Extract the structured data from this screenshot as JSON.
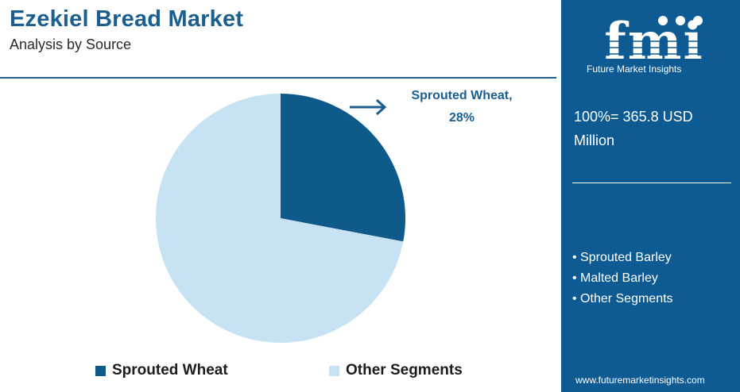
{
  "header": {
    "title": "Ezekiel Bread Market",
    "subtitle": "Analysis by Source"
  },
  "chart_data": {
    "type": "pie",
    "categories": [
      "Sprouted Wheat",
      "Other Segments"
    ],
    "values": [
      28,
      72
    ],
    "unit": "%",
    "colors": [
      "#0e5a8a",
      "#c7e3f3"
    ],
    "start_angle_deg": 0,
    "direction": "clockwise",
    "legend_position": "bottom",
    "annotation": {
      "label": "Sprouted Wheat,",
      "value": "28%"
    }
  },
  "sidebar": {
    "logo_text": "fmi",
    "logo_subtitle": "Future Market Insights",
    "total": "100%= 365.8 USD Million",
    "items": [
      "Sprouted Barley",
      "Malted Barley",
      "Other Segments"
    ],
    "website": "www.futuremarketinsights.com"
  },
  "colors": {
    "panel": "#0e5a92",
    "title": "#1a5f8f"
  }
}
